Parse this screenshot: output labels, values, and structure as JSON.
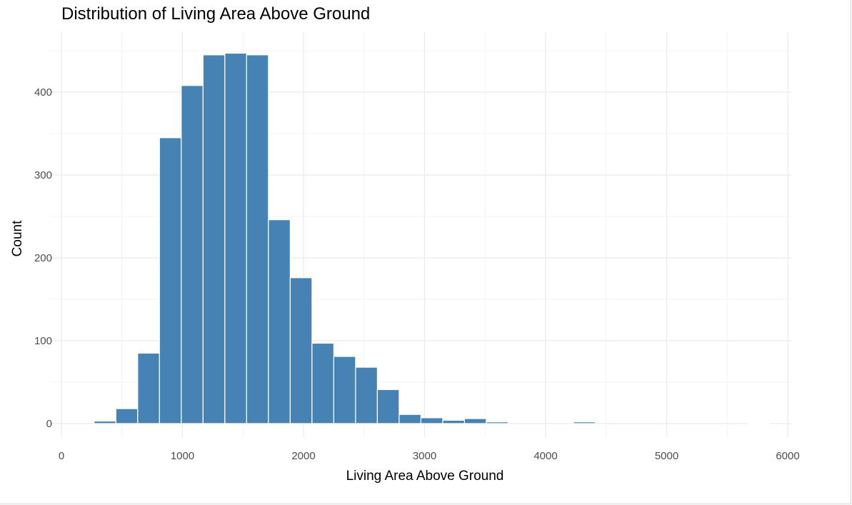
{
  "chart_data": {
    "type": "bar",
    "title": "Distribution of Living Area Above Ground",
    "xlabel": "Living Area Above Ground",
    "ylabel": "Count",
    "xlim": [
      0,
      6000
    ],
    "ylim": [
      0,
      450
    ],
    "x_ticks": [
      0,
      1000,
      2000,
      3000,
      4000,
      5000,
      6000
    ],
    "x_tick_labels": [
      "0",
      "1000",
      "2000",
      "3000",
      "4000",
      "5000",
      "6000"
    ],
    "y_ticks": [
      0,
      100,
      200,
      300,
      400
    ],
    "y_tick_labels": [
      "0",
      "100",
      "200",
      "300",
      "400"
    ],
    "grid": true,
    "bar_color": "#4682B4",
    "bar_edge_color": "#ffffff",
    "bins": [
      {
        "x0": 270,
        "x1": 450,
        "count": 3
      },
      {
        "x0": 450,
        "x1": 630,
        "count": 18
      },
      {
        "x0": 630,
        "x1": 810,
        "count": 85
      },
      {
        "x0": 810,
        "x1": 990,
        "count": 345
      },
      {
        "x0": 990,
        "x1": 1170,
        "count": 408
      },
      {
        "x0": 1170,
        "x1": 1350,
        "count": 445
      },
      {
        "x0": 1350,
        "x1": 1530,
        "count": 447
      },
      {
        "x0": 1530,
        "x1": 1710,
        "count": 445
      },
      {
        "x0": 1710,
        "x1": 1890,
        "count": 246
      },
      {
        "x0": 1890,
        "x1": 2070,
        "count": 176
      },
      {
        "x0": 2070,
        "x1": 2250,
        "count": 97
      },
      {
        "x0": 2250,
        "x1": 2430,
        "count": 81
      },
      {
        "x0": 2430,
        "x1": 2610,
        "count": 68
      },
      {
        "x0": 2610,
        "x1": 2790,
        "count": 41
      },
      {
        "x0": 2790,
        "x1": 2970,
        "count": 11
      },
      {
        "x0": 2970,
        "x1": 3150,
        "count": 7
      },
      {
        "x0": 3150,
        "x1": 3330,
        "count": 4
      },
      {
        "x0": 3330,
        "x1": 3510,
        "count": 6
      },
      {
        "x0": 3510,
        "x1": 3690,
        "count": 2
      },
      {
        "x0": 3690,
        "x1": 3870,
        "count": 0
      },
      {
        "x0": 3870,
        "x1": 4050,
        "count": 0
      },
      {
        "x0": 4050,
        "x1": 4230,
        "count": 0
      },
      {
        "x0": 4230,
        "x1": 4410,
        "count": 2
      },
      {
        "x0": 4410,
        "x1": 4590,
        "count": 0
      },
      {
        "x0": 4590,
        "x1": 4770,
        "count": 0
      },
      {
        "x0": 4770,
        "x1": 4950,
        "count": 0
      },
      {
        "x0": 4950,
        "x1": 5130,
        "count": 0
      },
      {
        "x0": 5130,
        "x1": 5310,
        "count": 0
      },
      {
        "x0": 5310,
        "x1": 5490,
        "count": 0
      },
      {
        "x0": 5490,
        "x1": 5670,
        "count": 0
      },
      {
        "x0": 5670,
        "x1": 5850,
        "count": 1
      }
    ]
  }
}
